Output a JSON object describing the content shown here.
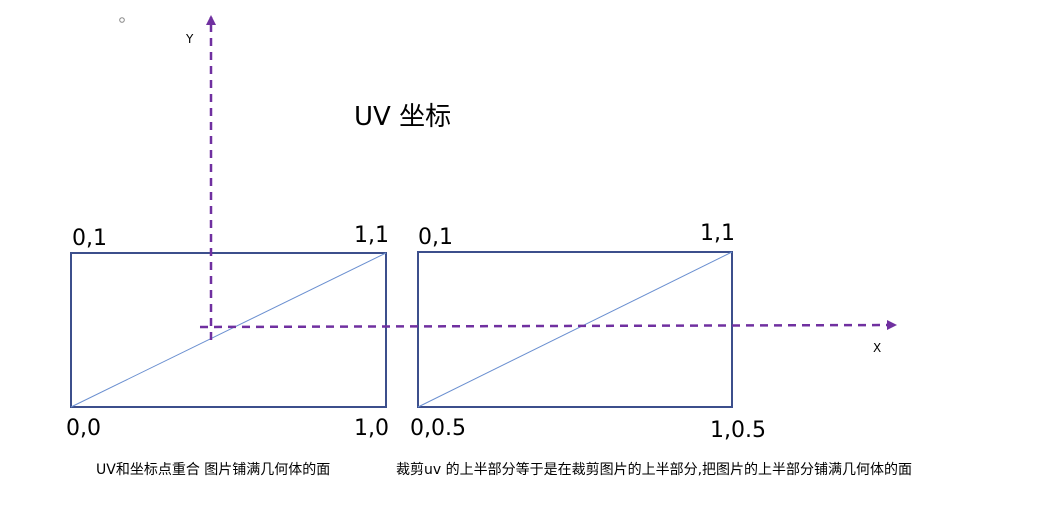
{
  "title": "UV 坐标",
  "axes": {
    "x_label": "X",
    "y_label": "Y"
  },
  "left_rect": {
    "corners": {
      "top_left": "0,1",
      "top_right": "1,1",
      "bottom_left": "0,0",
      "bottom_right": "1,0"
    },
    "caption": "UV和坐标点重合 图片铺满几何体的面"
  },
  "right_rect": {
    "corners": {
      "top_left": "0,1",
      "top_right": "1,1",
      "bottom_left": "0,0.5",
      "bottom_right": "1,0.5"
    },
    "caption": "裁剪uv 的上半部分等于是在裁剪图片的上半部分,把图片的上半部分铺满几何体的面"
  },
  "colors": {
    "rect_stroke": "#3c4f8c",
    "diagonal": "#6a8fd0",
    "axis": "#7030a0"
  }
}
